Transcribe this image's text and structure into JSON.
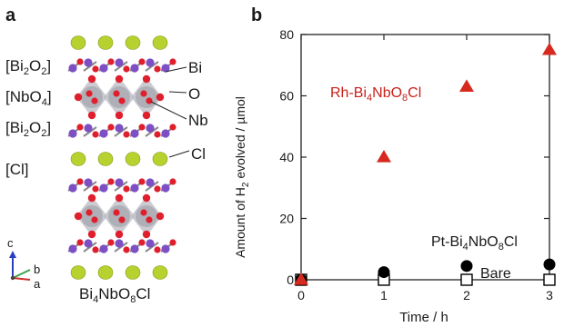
{
  "panel_a": {
    "letter": "a",
    "layers": [
      {
        "pre": "[Bi",
        "sub1": "2",
        "mid": "O",
        "sub2": "2",
        "post": "]"
      },
      {
        "pre": "[NbO",
        "sub1": "4",
        "mid": "",
        "sub2": "",
        "post": "]"
      },
      {
        "pre": "[Bi",
        "sub1": "2",
        "mid": "O",
        "sub2": "2",
        "post": "]"
      },
      {
        "pre": "[Cl]",
        "sub1": "",
        "mid": "",
        "sub2": "",
        "post": ""
      }
    ],
    "atoms": [
      "Bi",
      "O",
      "Nb",
      "Cl"
    ],
    "formula": {
      "p1": "Bi",
      "s1": "4",
      "p2": "NbO",
      "s2": "8",
      "p3": "Cl"
    },
    "axes": {
      "c": "c",
      "b": "b",
      "a": "a"
    },
    "colors": {
      "Bi": "#7c4fc4",
      "O": "#e01f2d",
      "Nb": "#b9b9c3",
      "Cl": "#b7d22f"
    }
  },
  "panel_b": {
    "letter": "b",
    "label_rh": {
      "p1": "Rh-Bi",
      "s1": "4",
      "p2": "NbO",
      "s2": "8",
      "p3": "Cl"
    },
    "label_pt": {
      "p1": "Pt-Bi",
      "s1": "4",
      "p2": "NbO",
      "s2": "8",
      "p3": "Cl"
    },
    "label_bare": "Bare",
    "ylabel": {
      "p1": "Amount of H",
      "s1": "2",
      "p2": " evolved / µmol"
    },
    "xlabel": "Time / h"
  },
  "chart_data": {
    "type": "scatter",
    "xlabel": "Time / h",
    "ylabel": "Amount of H2 evolved / µmol",
    "xlim": [
      0,
      3
    ],
    "ylim": [
      0,
      80
    ],
    "xticks": [
      0,
      1,
      2,
      3
    ],
    "yticks": [
      0,
      20,
      40,
      60,
      80
    ],
    "grid": false,
    "series": [
      {
        "name": "Rh-Bi4NbO8Cl",
        "marker": "triangle",
        "color": "#d62a1e",
        "x": [
          0,
          1,
          2,
          3
        ],
        "y": [
          0,
          40,
          63,
          75
        ]
      },
      {
        "name": "Pt-Bi4NbO8Cl",
        "marker": "circle",
        "color": "#000000",
        "x": [
          0,
          1,
          2,
          3
        ],
        "y": [
          0,
          2.5,
          4.5,
          5
        ]
      },
      {
        "name": "Bare",
        "marker": "open-square",
        "color": "#000000",
        "x": [
          0,
          1,
          2,
          3
        ],
        "y": [
          0,
          0,
          0,
          0
        ]
      }
    ]
  }
}
